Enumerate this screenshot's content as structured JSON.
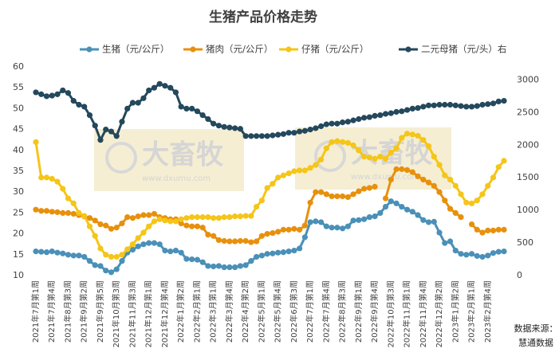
{
  "chart_data": {
    "type": "line",
    "title": "生猪产品价格走势",
    "categories": [
      "2021年7月第1周",
      null,
      null,
      "2021年7月第4周",
      null,
      null,
      "2021年8月第3周",
      null,
      null,
      "2021年9月第2周",
      null,
      null,
      "2021年9月第5周",
      null,
      null,
      "2021年10月第3周",
      null,
      null,
      "2021年11月第3周",
      null,
      null,
      "2021年12月第1周",
      null,
      null,
      "2021年12月第4周",
      null,
      null,
      "2022年1月第2周",
      null,
      null,
      "2022年2月第1周",
      null,
      null,
      "2022年3月第1周",
      null,
      null,
      "2022年3月第4周",
      null,
      null,
      "2022年4月第2周",
      null,
      null,
      "2022年5月第1周",
      null,
      null,
      "2022年5月第4周",
      null,
      null,
      "2022年6月第3周",
      null,
      null,
      "2022年7月第1周",
      null,
      null,
      "2022年7月第4周",
      null,
      null,
      "2022年8月第3周",
      null,
      null,
      "2022年9月第1周",
      null,
      null,
      "2022年9月第4周",
      null,
      null,
      "2022年10月第3周",
      null,
      null,
      "2022年11月第1周",
      null,
      null,
      "2022年11月第4周",
      null,
      null,
      "2022年12月第2周",
      null,
      null,
      "2023年1月第2周",
      null,
      null,
      "2023年2月第1周",
      null,
      null,
      "2023年2月第4周",
      null,
      null,
      null
    ],
    "series": [
      {
        "name": "生猪（元/公斤）",
        "color": "#4a90b8",
        "values": [
          15.8,
          15.7,
          15.6,
          15.8,
          15.5,
          15.3,
          15,
          14.8,
          14.8,
          14.5,
          13.5,
          12.5,
          12.3,
          11.2,
          10.8,
          11.5,
          13.5,
          15.5,
          16.2,
          17,
          17.5,
          17.8,
          17.8,
          17.5,
          16,
          15.8,
          16,
          15.5,
          14,
          13.9,
          13.8,
          13.2,
          12.3,
          12.2,
          12.3,
          12,
          12,
          12,
          12.3,
          12.5,
          13.5,
          14.5,
          14.8,
          15.2,
          15.3,
          15.5,
          15.6,
          15.8,
          16,
          16.5,
          19.2,
          22.8,
          23,
          22.8,
          21.8,
          21.5,
          21.5,
          21.3,
          21.8,
          23.2,
          23.3,
          23.5,
          24,
          24.2,
          25,
          26.5,
          27.8,
          27.3,
          26.5,
          25.8,
          25.3,
          24.5,
          23.3,
          22.8,
          22.9,
          20.3,
          17.8,
          18.2,
          16,
          15.2,
          15,
          15.2,
          14.7,
          14.5,
          14.8,
          15.4,
          15.7,
          15.8
        ]
      },
      {
        "name": "猪肉（元/公斤）",
        "color": "#e8900c",
        "values": [
          25.8,
          25.5,
          25.5,
          25.3,
          25.2,
          25,
          25,
          24.8,
          24.5,
          24.2,
          23.8,
          23.2,
          22.3,
          22,
          21.2,
          21.5,
          22.5,
          24,
          23.8,
          24.2,
          24.5,
          24.5,
          24.8,
          24,
          23.8,
          23.5,
          23.5,
          22.5,
          22,
          21.8,
          21.8,
          21.5,
          19.8,
          19.5,
          18.5,
          18.3,
          18.2,
          18.2,
          18.3,
          18.3,
          18,
          18.2,
          19.5,
          20,
          20.2,
          20.5,
          21,
          21,
          21.2,
          21,
          22,
          27.5,
          30,
          30,
          29.5,
          29,
          29,
          29,
          28.8,
          29.5,
          30.2,
          30.8,
          31,
          31.3,
          null,
          28.5,
          33,
          35.5,
          35.5,
          35.3,
          34.8,
          33.8,
          33,
          32.3,
          31.5,
          30,
          28,
          26,
          25,
          24,
          null,
          22.3,
          21,
          20.3,
          20.8,
          20.8,
          21,
          21
        ]
      },
      {
        "name": "仔猪（元/公斤）",
        "color": "#f5c518",
        "values": [
          42,
          33.5,
          33.5,
          33.2,
          32.5,
          30.8,
          28.5,
          27.3,
          25,
          24.3,
          21.8,
          19.5,
          16.5,
          15,
          14.5,
          14.5,
          15,
          16.3,
          17.5,
          19,
          20.3,
          21.8,
          23,
          23.5,
          23.2,
          23,
          23,
          23.5,
          23.8,
          24,
          24,
          24,
          24,
          23.8,
          23.8,
          24,
          24,
          24.2,
          24.2,
          24.3,
          24.3,
          26.5,
          28,
          31,
          32,
          33.5,
          34,
          34.5,
          35,
          35.2,
          35.2,
          35.8,
          36.5,
          37.8,
          40.5,
          42,
          42.2,
          42,
          41.8,
          41.2,
          40,
          38.5,
          38.3,
          38,
          38.5,
          38,
          39.5,
          40.5,
          43,
          44,
          43.8,
          43.5,
          42.5,
          41,
          38.5,
          36.5,
          34,
          33,
          31.5,
          29.5,
          27.5,
          27.3,
          28,
          29.5,
          31.5,
          33.5,
          36,
          37.5
        ]
      },
      {
        "name": "二元母猪（元/头）右",
        "color": "#24485c",
        "axis": "y2",
        "values": [
          2810,
          2780,
          2750,
          2760,
          2780,
          2840,
          2800,
          2680,
          2620,
          2590,
          2460,
          2300,
          2080,
          2240,
          2210,
          2140,
          2360,
          2560,
          2650,
          2650,
          2720,
          2840,
          2880,
          2940,
          2910,
          2880,
          2810,
          2590,
          2560,
          2560,
          2520,
          2460,
          2400,
          2330,
          2300,
          2280,
          2270,
          2260,
          2250,
          2140,
          2140,
          2140,
          2140,
          2140,
          2150,
          2160,
          2170,
          2190,
          2190,
          2210,
          2220,
          2240,
          2260,
          2290,
          2320,
          2330,
          2330,
          2350,
          2360,
          2380,
          2400,
          2420,
          2430,
          2450,
          2460,
          2480,
          2490,
          2510,
          2520,
          2540,
          2560,
          2570,
          2590,
          2610,
          2610,
          2620,
          2620,
          2620,
          2610,
          2600,
          2590,
          2590,
          2600,
          2620,
          2630,
          2640,
          2670,
          2680
        ]
      }
    ],
    "ylim": [
      10,
      60
    ],
    "yticks": [
      10,
      15,
      20,
      25,
      30,
      35,
      40,
      45,
      50,
      55,
      60
    ],
    "y2lim": [
      0,
      3200
    ],
    "y2ticks": [
      0,
      500,
      1000,
      1500,
      2000,
      2500,
      3000
    ],
    "legend": "top",
    "watermark": {
      "name": "大畜牧",
      "url": "www.dxumu.com"
    },
    "source": [
      "数据来源：",
      "慧通数据"
    ]
  }
}
